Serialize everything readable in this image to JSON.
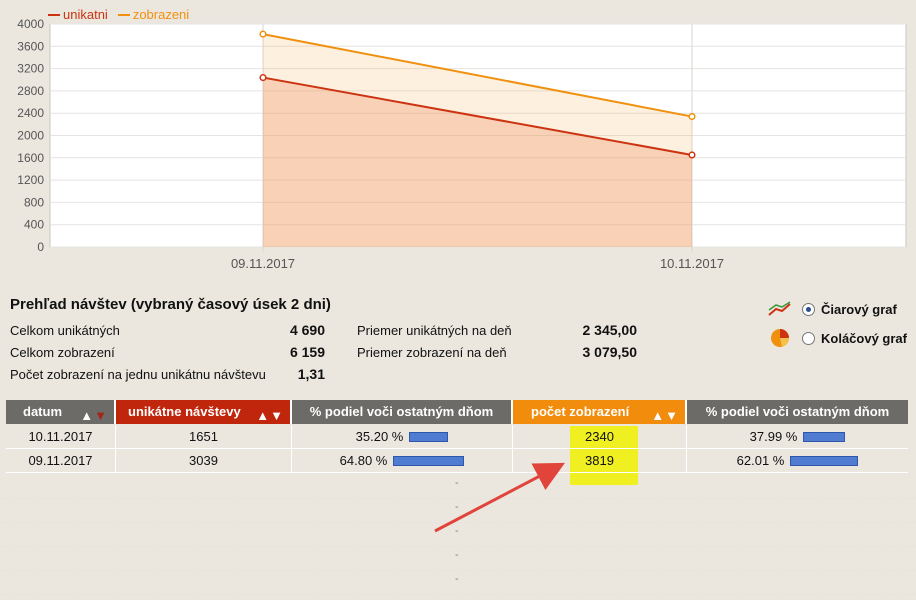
{
  "chart_data": {
    "type": "line",
    "x": [
      "09.11.2017",
      "10.11.2017"
    ],
    "series": [
      {
        "name": "unikatni",
        "values": [
          3039,
          1651
        ],
        "color": "#cc3311"
      },
      {
        "name": "zobrazeni",
        "values": [
          3819,
          2340
        ],
        "color": "#f0900f"
      }
    ],
    "ylim": [
      0,
      4000
    ],
    "yticks": [
      0,
      400,
      800,
      1200,
      1600,
      2000,
      2400,
      2800,
      3200,
      3600,
      4000
    ],
    "grid": true,
    "legend": "top-left"
  },
  "summary": {
    "title": "Prehľad návštev (vybraný časový úsek 2 dni)",
    "total_unique_label": "Celkom unikátných",
    "total_unique_value": "4 690",
    "total_views_label": "Celkom zobrazení",
    "total_views_value": "6 159",
    "views_per_visit_label": "Počet zobrazení na jednu unikátnu návštevu",
    "views_per_visit_value": "1,31",
    "avg_unique_label": "Priemer unikátných na deň",
    "avg_unique_value": "2 345,00",
    "avg_views_label": "Priemer zobrazení na deň",
    "avg_views_value": "3 079,50"
  },
  "chart_type": {
    "line_label": "Čiarový graf",
    "pie_label": "Koláčový graf",
    "selected": "line"
  },
  "table": {
    "headers": [
      "datum",
      "unikátne návštevy",
      "% podiel voči ostatným dňom",
      "počet zobrazení",
      "% podiel voči ostatným dňom"
    ],
    "header_colors": [
      "#6d6b68",
      "#c0260c",
      "#6d6b68",
      "#f28c0c",
      "#6d6b68"
    ],
    "sort_up": "▲",
    "sort_down": "▼",
    "rows": [
      {
        "date": "10.11.2017",
        "unique": "1651",
        "unique_pct": "35.20 %",
        "unique_share": 0.352,
        "views": "2340",
        "views_pct": "37.99 %",
        "views_share": 0.3799
      },
      {
        "date": "09.11.2017",
        "unique": "3039",
        "unique_pct": "64.80 %",
        "unique_share": 0.648,
        "views": "3819",
        "views_pct": "62.01 %",
        "views_share": 0.6201
      }
    ],
    "empty_placeholder": "-"
  }
}
